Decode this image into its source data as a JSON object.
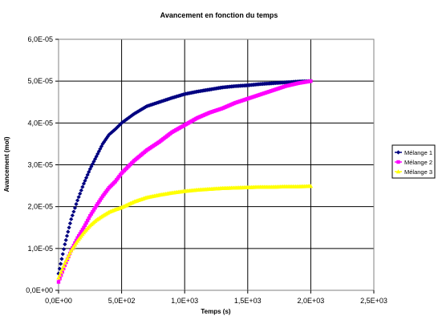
{
  "chart_data": {
    "type": "scatter",
    "title": "Avancement en fonction du temps",
    "xlabel": "Temps (s)",
    "ylabel": "Avancement (mol)",
    "xlim": [
      0,
      2500
    ],
    "ylim": [
      0,
      6e-05
    ],
    "x_ticks": [
      0,
      500,
      1000,
      1500,
      2000,
      2500
    ],
    "x_tick_labels": [
      "0,0E+00",
      "5,0E+02",
      "1,0E+03",
      "1,5E+03",
      "2,0E+03",
      "2,5E+03"
    ],
    "y_ticks": [
      0,
      1e-05,
      2e-05,
      3e-05,
      4e-05,
      5e-05,
      6e-05
    ],
    "y_tick_labels": [
      "0,0E+00",
      "1,0E-05",
      "2,0E-05",
      "3,0E-05",
      "4,0E-05",
      "5,0E-05",
      "6,0E-05"
    ],
    "grid": true,
    "legend_position": "right",
    "series": [
      {
        "name": "Mélange 1",
        "color": "#000080",
        "marker": "diamond",
        "x": [
          0,
          25,
          50,
          75,
          100,
          150,
          200,
          250,
          300,
          350,
          400,
          450,
          500,
          600,
          700,
          800,
          900,
          1000,
          1100,
          1200,
          1300,
          1400,
          1500,
          1600,
          1700,
          1800,
          1900,
          2000
        ],
        "y": [
          4e-06,
          7.5e-06,
          1.1e-05,
          1.4e-05,
          1.7e-05,
          2.15e-05,
          2.55e-05,
          2.9e-05,
          3.2e-05,
          3.5e-05,
          3.72e-05,
          3.85e-05,
          4e-05,
          4.22e-05,
          4.4e-05,
          4.5e-05,
          4.6e-05,
          4.69e-05,
          4.75e-05,
          4.8e-05,
          4.85e-05,
          4.88e-05,
          4.9e-05,
          4.93e-05,
          4.95e-05,
          4.97e-05,
          4.99e-05,
          5e-05
        ]
      },
      {
        "name": "Mélange 2",
        "color": "#ff00ff",
        "marker": "square",
        "x": [
          0,
          50,
          100,
          150,
          200,
          250,
          300,
          350,
          400,
          450,
          500,
          600,
          700,
          800,
          900,
          1000,
          1100,
          1200,
          1300,
          1400,
          1500,
          1600,
          1700,
          1800,
          1900,
          2000
        ],
        "y": [
          2e-06,
          6e-06,
          9.5e-06,
          1.25e-05,
          1.5e-05,
          1.78e-05,
          2.02e-05,
          2.25e-05,
          2.45e-05,
          2.6e-05,
          2.8e-05,
          3.1e-05,
          3.35e-05,
          3.55e-05,
          3.78e-05,
          3.95e-05,
          4.12e-05,
          4.25e-05,
          4.35e-05,
          4.48e-05,
          4.58e-05,
          4.68e-05,
          4.78e-05,
          4.88e-05,
          4.95e-05,
          5e-05
        ]
      },
      {
        "name": "Mélange 3",
        "color": "#ffff00",
        "marker": "triangle",
        "x": [
          0,
          50,
          100,
          150,
          200,
          250,
          300,
          350,
          400,
          450,
          500,
          600,
          700,
          800,
          900,
          1000,
          1100,
          1200,
          1300,
          1400,
          1500,
          1600,
          1700,
          1800,
          1900,
          2000
        ],
        "y": [
          3e-06,
          6.5e-06,
          9.5e-06,
          1.18e-05,
          1.38e-05,
          1.55e-05,
          1.68e-05,
          1.78e-05,
          1.87e-05,
          1.93e-05,
          1.98e-05,
          2.12e-05,
          2.22e-05,
          2.28e-05,
          2.33e-05,
          2.37e-05,
          2.4e-05,
          2.42e-05,
          2.44e-05,
          2.45e-05,
          2.46e-05,
          2.47e-05,
          2.47e-05,
          2.48e-05,
          2.48e-05,
          2.49e-05
        ]
      }
    ]
  }
}
